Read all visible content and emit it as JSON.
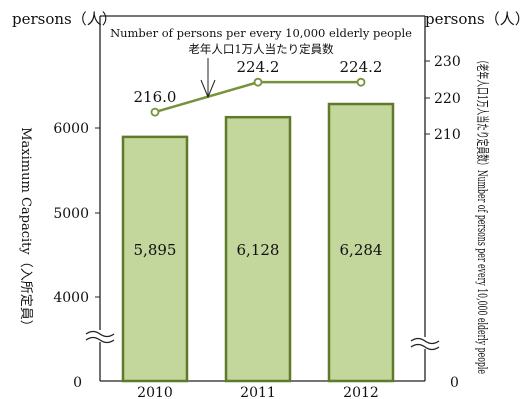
{
  "chart_data": {
    "type": "bar",
    "categories": [
      "2010",
      "2011",
      "2012"
    ],
    "series": [
      {
        "name": "",
        "kind": "bar",
        "axis": "left",
        "values": [
          5895,
          6128,
          6284
        ],
        "labels": [
          "5,895",
          "6,128",
          "6,284"
        ]
      },
      {
        "name": "",
        "kind": "line",
        "axis": "right",
        "values": [
          216.0,
          224.2,
          224.2
        ],
        "labels": [
          "216.0",
          "224.2",
          "224.2"
        ]
      }
    ],
    "y_left": {
      "label": "Maximum Capacity（入所定員）",
      "unit": "persons（人）",
      "ticks": [
        "0",
        "4000",
        "5000",
        "6000"
      ],
      "range": [
        3000,
        7000
      ],
      "axis_break": true
    },
    "y_right": {
      "label": "（老年人口1万人当たり定員数）Number of persons per every 10,000 elderly people",
      "unit": "persons（人）",
      "ticks": [
        "0",
        "210",
        "220",
        "230"
      ],
      "range": [
        200,
        240
      ],
      "axis_break": true
    },
    "annotation": {
      "line1": "Number of persons per every 10,000 elderly people",
      "line2": "老年人口1万人当たり定員数"
    },
    "colors": {
      "bar_fill": "#c3d69b",
      "bar_stroke": "#5e7a2a",
      "line": "#76923c",
      "marker_fill": "#ffffff"
    },
    "grid": false,
    "legend": "none"
  }
}
